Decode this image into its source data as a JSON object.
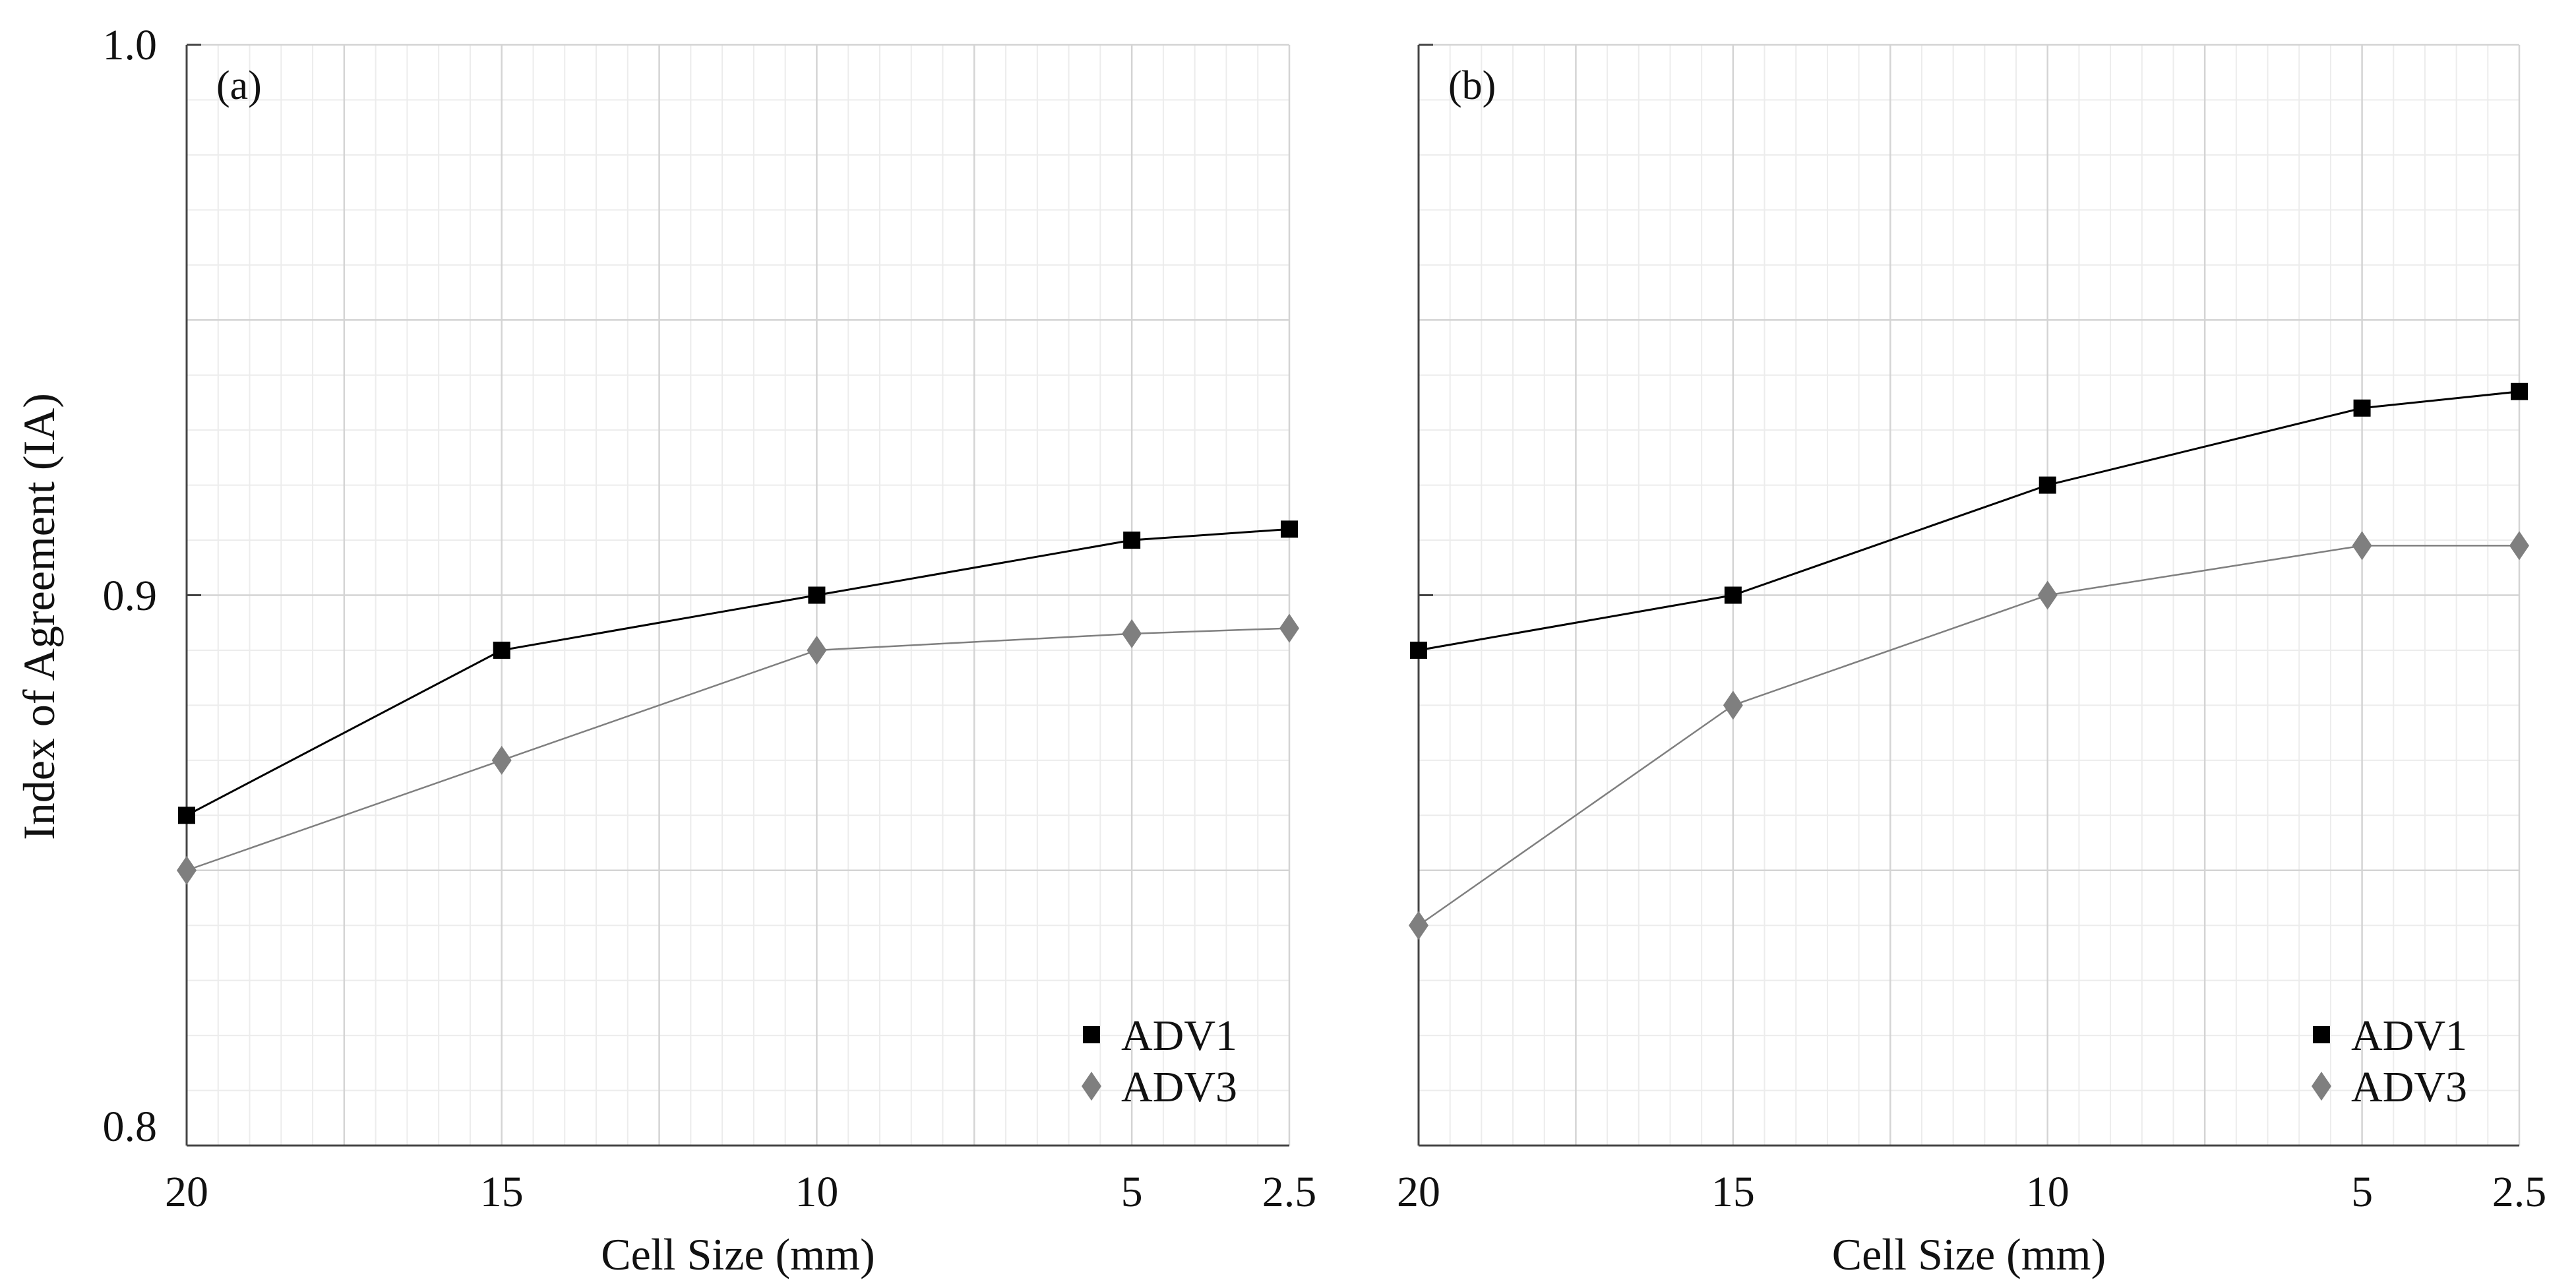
{
  "figure": {
    "y_axis_label": "Index of Agreement (IA)",
    "y_tick_labels": [
      "1.0",
      "0.9",
      "0.8"
    ]
  },
  "colors": {
    "ADV1": "#000000",
    "ADV3": "#7f7f7f",
    "grid_major": "#d4d4d4",
    "grid_minor": "#ececec",
    "axis": "#444444"
  },
  "chart_data": [
    {
      "type": "line",
      "panel_label": "(a)",
      "xlabel": "Cell Size (mm)",
      "ylabel": "Index of Agreement (IA)",
      "x": [
        20,
        15,
        10,
        5,
        2.5
      ],
      "x_tick_labels": [
        "20",
        "15",
        "10",
        "5",
        "2.5"
      ],
      "x_reversed": true,
      "xlim": [
        20,
        2.5
      ],
      "ylim": [
        0.8,
        1.0
      ],
      "y_ticks": [
        0.8,
        0.9,
        1.0
      ],
      "grid": true,
      "legend_position": "bottom-right",
      "series": [
        {
          "name": "ADV1",
          "marker": "square",
          "values": [
            0.86,
            0.89,
            0.9,
            0.91,
            0.912
          ]
        },
        {
          "name": "ADV3",
          "marker": "diamond",
          "values": [
            0.85,
            0.87,
            0.89,
            0.893,
            0.894
          ]
        }
      ]
    },
    {
      "type": "line",
      "panel_label": "(b)",
      "xlabel": "Cell Size (mm)",
      "ylabel": "Index of Agreement (IA)",
      "x": [
        20,
        15,
        10,
        5,
        2.5
      ],
      "x_tick_labels": [
        "20",
        "15",
        "10",
        "5",
        "2.5"
      ],
      "x_reversed": true,
      "xlim": [
        20,
        2.5
      ],
      "ylim": [
        0.8,
        1.0
      ],
      "y_ticks": [
        0.8,
        0.9,
        1.0
      ],
      "grid": true,
      "legend_position": "bottom-right",
      "series": [
        {
          "name": "ADV1",
          "marker": "square",
          "values": [
            0.89,
            0.9,
            0.92,
            0.934,
            0.937
          ]
        },
        {
          "name": "ADV3",
          "marker": "diamond",
          "values": [
            0.84,
            0.88,
            0.9,
            0.909,
            0.909
          ]
        }
      ]
    }
  ]
}
